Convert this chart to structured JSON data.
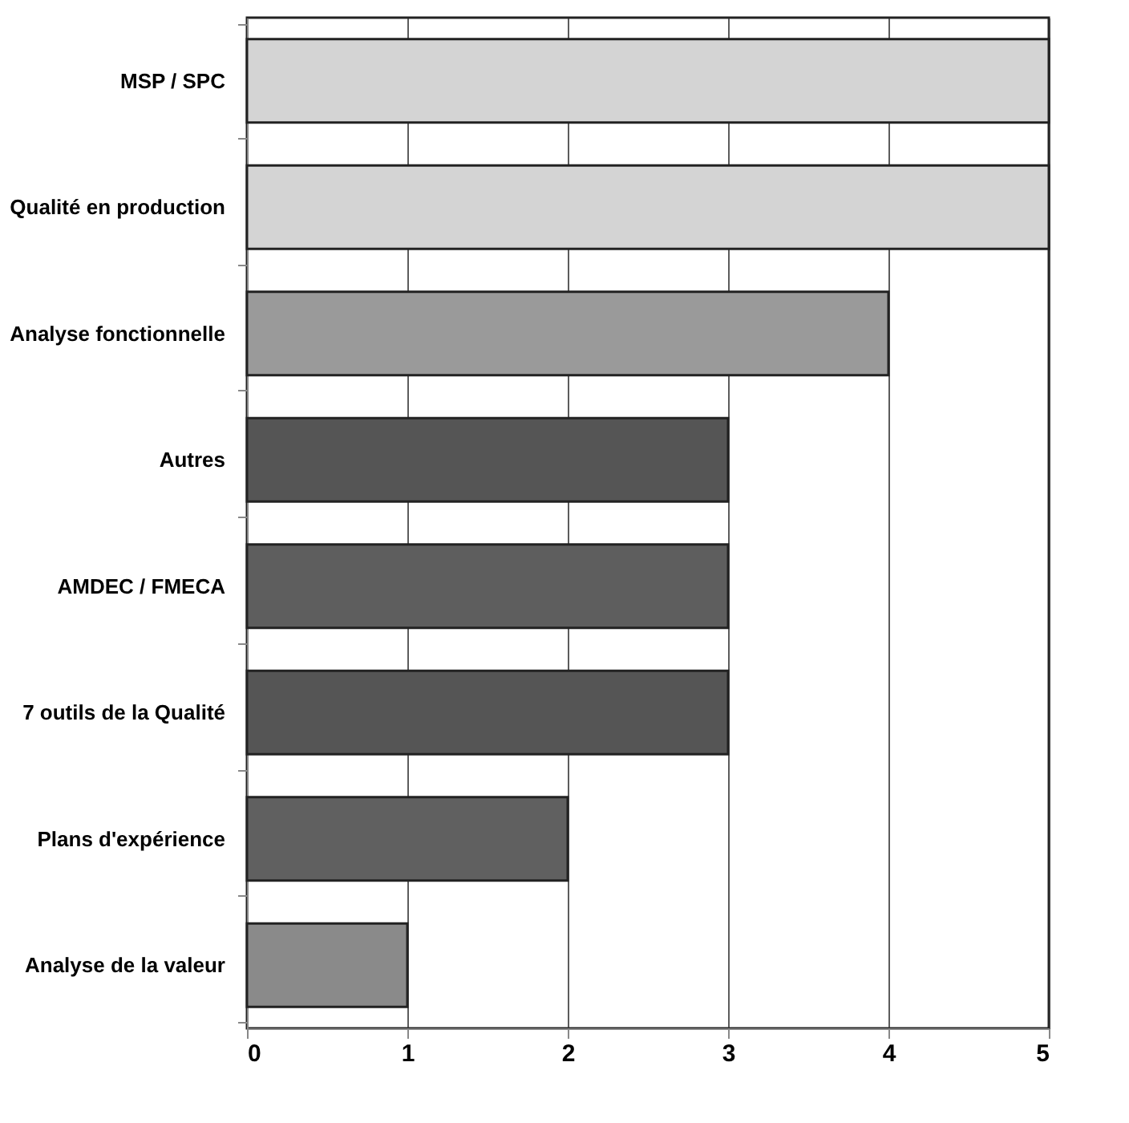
{
  "chart_data": {
    "type": "bar",
    "orientation": "horizontal",
    "categories": [
      "MSP / SPC",
      "Qualité en production",
      "Analyse fonctionnelle",
      "Autres",
      "AMDEC / FMECA",
      "7 outils de la Qualité",
      "Plans d'expérience",
      "Analyse de la valeur"
    ],
    "values": [
      5,
      5,
      4,
      3,
      3,
      3,
      2,
      1
    ],
    "colors": [
      "#d4d4d4",
      "#d4d4d4",
      "#9a9a9a",
      "#555555",
      "#5e5e5e",
      "#555555",
      "#606060",
      "#8a8a8a"
    ],
    "xlim": [
      0,
      5
    ],
    "xticks": [
      0,
      1,
      2,
      3,
      4,
      5
    ],
    "grid": "x"
  }
}
